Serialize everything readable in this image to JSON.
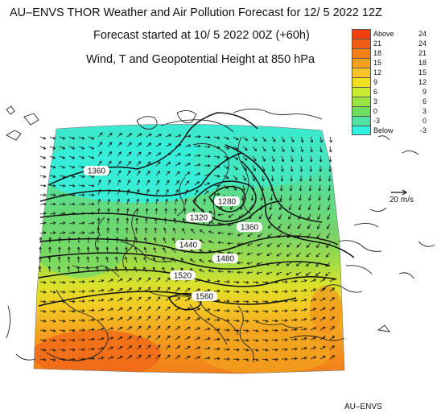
{
  "header": {
    "title": "AU–ENVS THOR Weather and Air Pollution Forecast for 12/ 5 2022  12Z",
    "forecast_start": "Forecast started at 10/ 5 2022  00Z (+60h)",
    "variable": "Wind, T and Geopotential Height at 850 hPa"
  },
  "legend": {
    "items": [
      {
        "lo": "Above",
        "hi": "24",
        "color": "#f04010"
      },
      {
        "lo": "21",
        "hi": "24",
        "color": "#f05c14"
      },
      {
        "lo": "18",
        "hi": "21",
        "color": "#f4801a"
      },
      {
        "lo": "15",
        "hi": "18",
        "color": "#f6a020"
      },
      {
        "lo": "12",
        "hi": "15",
        "color": "#f8c428"
      },
      {
        "lo": "9",
        "hi": "12",
        "color": "#f0e020"
      },
      {
        "lo": "6",
        "hi": "9",
        "color": "#c8ec30"
      },
      {
        "lo": "3",
        "hi": "6",
        "color": "#98e440"
      },
      {
        "lo": "0",
        "hi": "3",
        "color": "#70dc60"
      },
      {
        "lo": "-3",
        "hi": "0",
        "color": "#50e0a0"
      },
      {
        "lo": "Below",
        "hi": "-3",
        "color": "#30f0e0"
      }
    ]
  },
  "wind_reference": {
    "label": "20 m/s"
  },
  "contours": [
    {
      "label": "1360"
    },
    {
      "label": "1280"
    },
    {
      "label": "1320"
    },
    {
      "label": "1360"
    },
    {
      "label": "1440"
    },
    {
      "label": "1480"
    },
    {
      "label": "1520"
    },
    {
      "label": "1560"
    }
  ],
  "credit": "AU–ENVS"
}
